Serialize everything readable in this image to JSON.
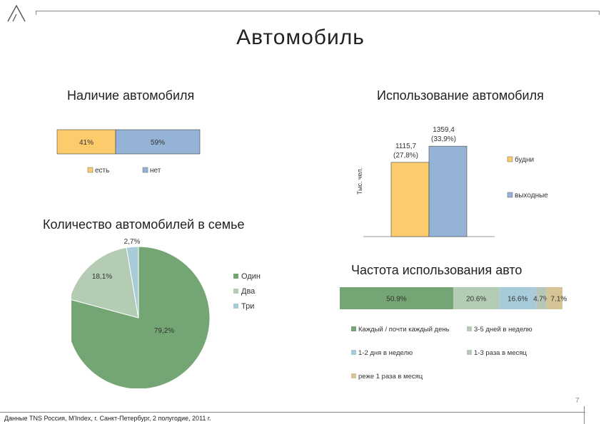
{
  "page": {
    "title": "Автомобиль",
    "footer": "Данные TNS Россия, M'Index, г. Санкт-Петербург, 2 полугодие, 2011 г.",
    "page_number": "7"
  },
  "colors": {
    "orange": "#FCCC6C",
    "blue": "#95B3D7",
    "green_dark": "#74A574",
    "green_light": "#B3CCB3",
    "light_blue": "#A8CBDA",
    "tan": "#D5C495"
  },
  "chart_data": [
    {
      "id": "ownership",
      "type": "bar",
      "stacked": true,
      "orientation": "horizontal",
      "title": "Наличие автомобиля",
      "series": [
        {
          "name": "есть",
          "value": 41,
          "label": "41%",
          "color": "#FCCC6C"
        },
        {
          "name": "нет",
          "value": 59,
          "label": "59%",
          "color": "#95B3D7"
        }
      ],
      "legend": "bottom"
    },
    {
      "id": "usage",
      "type": "bar",
      "title": "Использование автомобиля",
      "ylabel": "Тыс. чел.",
      "ylim": [
        0,
        1500
      ],
      "series": [
        {
          "name": "будни",
          "value": 1115.7,
          "label_value": "1115,7",
          "label_pct": "(27,8%)",
          "color": "#FCCC6C"
        },
        {
          "name": "выходные",
          "value": 1359.4,
          "label_value": "1359,4",
          "label_pct": "(33,9%)",
          "color": "#95B3D7"
        }
      ],
      "legend": "right"
    },
    {
      "id": "car_count",
      "type": "pie",
      "title": "Количество автомобилей в семье",
      "slices": [
        {
          "name": "Один",
          "value": 79.2,
          "label": "79,2%",
          "color": "#74A574"
        },
        {
          "name": "Два",
          "value": 18.1,
          "label": "18,1%",
          "color": "#B3CCB3"
        },
        {
          "name": "Три",
          "value": 2.7,
          "label": "2,7%",
          "color": "#A8CBDA"
        }
      ],
      "legend": "right"
    },
    {
      "id": "frequency",
      "type": "bar",
      "stacked": true,
      "orientation": "horizontal",
      "title": "Частота использования авто",
      "series": [
        {
          "name": "Каждый / почти каждый день",
          "value": 50.9,
          "label": "50.9%",
          "color": "#74A574"
        },
        {
          "name": "3-5 дней в неделю",
          "value": 20.6,
          "label": "20.6%",
          "color": "#B3CCB3"
        },
        {
          "name": "1-2 дня в неделю",
          "value": 16.6,
          "label": "16.6%",
          "color": "#A8CBDA"
        },
        {
          "name": "1-3 раза в месяц",
          "value": 4.7,
          "label": "4.7%",
          "color": "#B8C6B8"
        },
        {
          "name": "реже 1 раза в месяц",
          "value": 7.1,
          "label": "7.1%",
          "color": "#D5C495"
        }
      ],
      "legend": "bottom"
    }
  ]
}
